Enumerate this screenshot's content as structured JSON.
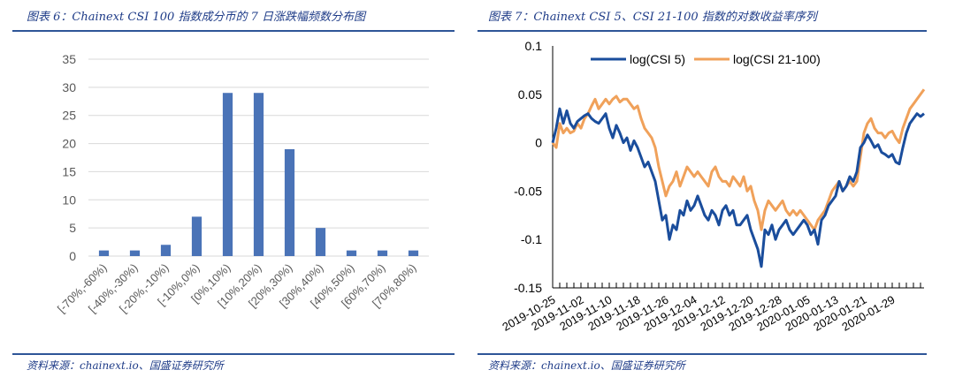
{
  "left": {
    "title": "图表 6：Chainext CSI 100 指数成分币的 7 日涨跌幅频数分布图",
    "source": "资料来源：chainext.io、国盛证券研究所"
  },
  "right": {
    "title": "图表 7：Chainext CSI 5、CSI 21-100 指数的对数收益率序列",
    "source": "资料来源：chainext.io、国盛证券研究所"
  },
  "colors": {
    "bar": "#4a73b7",
    "series1": "#1a4d9c",
    "series2": "#f0a15a",
    "grid": "#d9d9d9",
    "rule": "#2e5597"
  },
  "chart_data": [
    {
      "type": "bar",
      "title": "",
      "categories": [
        "[-70%,-60%)",
        "[-40%,-30%)",
        "[-20%,-10%)",
        "[-10%,0%)",
        "[0%,10%)",
        "[10%,20%)",
        "[20%,30%)",
        "[30%,40%)",
        "[40%,50%)",
        "[60%,70%)",
        "[70%,80%)"
      ],
      "values": [
        1,
        1,
        2,
        7,
        29,
        29,
        19,
        5,
        1,
        1,
        1
      ],
      "ylim": [
        0,
        35
      ],
      "yticks": [
        "0",
        "5",
        "10",
        "15",
        "20",
        "25",
        "30",
        "35"
      ],
      "grid": true
    },
    {
      "type": "line",
      "title": "",
      "ylim": [
        -0.15,
        0.1
      ],
      "yticks": [
        "0.1",
        "0.05",
        "0",
        "-0.05",
        "-0.1",
        "-0.15"
      ],
      "xticks": [
        "2019-10-25",
        "2019-11-02",
        "2019-11-10",
        "2019-11-18",
        "2019-11-26",
        "2019-12-04",
        "2019-12-12",
        "2019-12-20",
        "2019-12-28",
        "2020-01-05",
        "2020-01-13",
        "2020-01-21",
        "2020-01-29"
      ],
      "legend": "top",
      "series": [
        {
          "name": "log(CSI 5)",
          "values": [
            0.0,
            0.015,
            0.035,
            0.02,
            0.033,
            0.02,
            0.015,
            0.022,
            0.025,
            0.028,
            0.03,
            0.025,
            0.022,
            0.02,
            0.025,
            0.03,
            0.015,
            0.005,
            0.018,
            0.01,
            0.0,
            0.005,
            -0.008,
            0.002,
            -0.005,
            -0.015,
            -0.025,
            -0.02,
            -0.03,
            -0.04,
            -0.06,
            -0.08,
            -0.075,
            -0.1,
            -0.085,
            -0.09,
            -0.07,
            -0.075,
            -0.06,
            -0.07,
            -0.065,
            -0.055,
            -0.065,
            -0.075,
            -0.08,
            -0.07,
            -0.075,
            -0.085,
            -0.07,
            -0.065,
            -0.075,
            -0.07,
            -0.085,
            -0.085,
            -0.08,
            -0.075,
            -0.09,
            -0.1,
            -0.11,
            -0.128,
            -0.09,
            -0.095,
            -0.085,
            -0.1,
            -0.09,
            -0.085,
            -0.08,
            -0.09,
            -0.095,
            -0.09,
            -0.085,
            -0.08,
            -0.085,
            -0.095,
            -0.09,
            -0.105,
            -0.08,
            -0.075,
            -0.065,
            -0.06,
            -0.055,
            -0.04,
            -0.05,
            -0.045,
            -0.035,
            -0.04,
            -0.03,
            -0.005,
            0.0,
            0.008,
            0.002,
            -0.005,
            -0.002,
            -0.01,
            -0.012,
            -0.015,
            -0.012,
            -0.02,
            -0.022,
            -0.005,
            0.01,
            0.02,
            0.025,
            0.03,
            0.027,
            0.03
          ]
        },
        {
          "name": "log(CSI 21-100)",
          "values": [
            0.0,
            -0.005,
            0.02,
            0.01,
            0.015,
            0.01,
            0.012,
            0.02,
            0.015,
            0.025,
            0.03,
            0.038,
            0.045,
            0.035,
            0.04,
            0.045,
            0.04,
            0.045,
            0.048,
            0.042,
            0.045,
            0.045,
            0.04,
            0.035,
            0.038,
            0.025,
            0.015,
            0.01,
            0.005,
            -0.005,
            -0.025,
            -0.04,
            -0.055,
            -0.045,
            -0.04,
            -0.03,
            -0.045,
            -0.035,
            -0.025,
            -0.03,
            -0.035,
            -0.03,
            -0.035,
            -0.04,
            -0.045,
            -0.03,
            -0.025,
            -0.035,
            -0.04,
            -0.04,
            -0.045,
            -0.035,
            -0.04,
            -0.045,
            -0.035,
            -0.05,
            -0.045,
            -0.06,
            -0.07,
            -0.09,
            -0.07,
            -0.06,
            -0.065,
            -0.07,
            -0.065,
            -0.06,
            -0.07,
            -0.075,
            -0.07,
            -0.075,
            -0.07,
            -0.075,
            -0.08,
            -0.085,
            -0.09,
            -0.08,
            -0.075,
            -0.07,
            -0.06,
            -0.05,
            -0.045,
            -0.04,
            -0.05,
            -0.045,
            -0.04,
            -0.045,
            -0.04,
            -0.015,
            0.01,
            0.02,
            0.025,
            0.015,
            0.01,
            0.01,
            0.005,
            0.01,
            0.012,
            0.005,
            0.0,
            0.015,
            0.025,
            0.035,
            0.04,
            0.045,
            0.05,
            0.055
          ]
        }
      ]
    }
  ]
}
